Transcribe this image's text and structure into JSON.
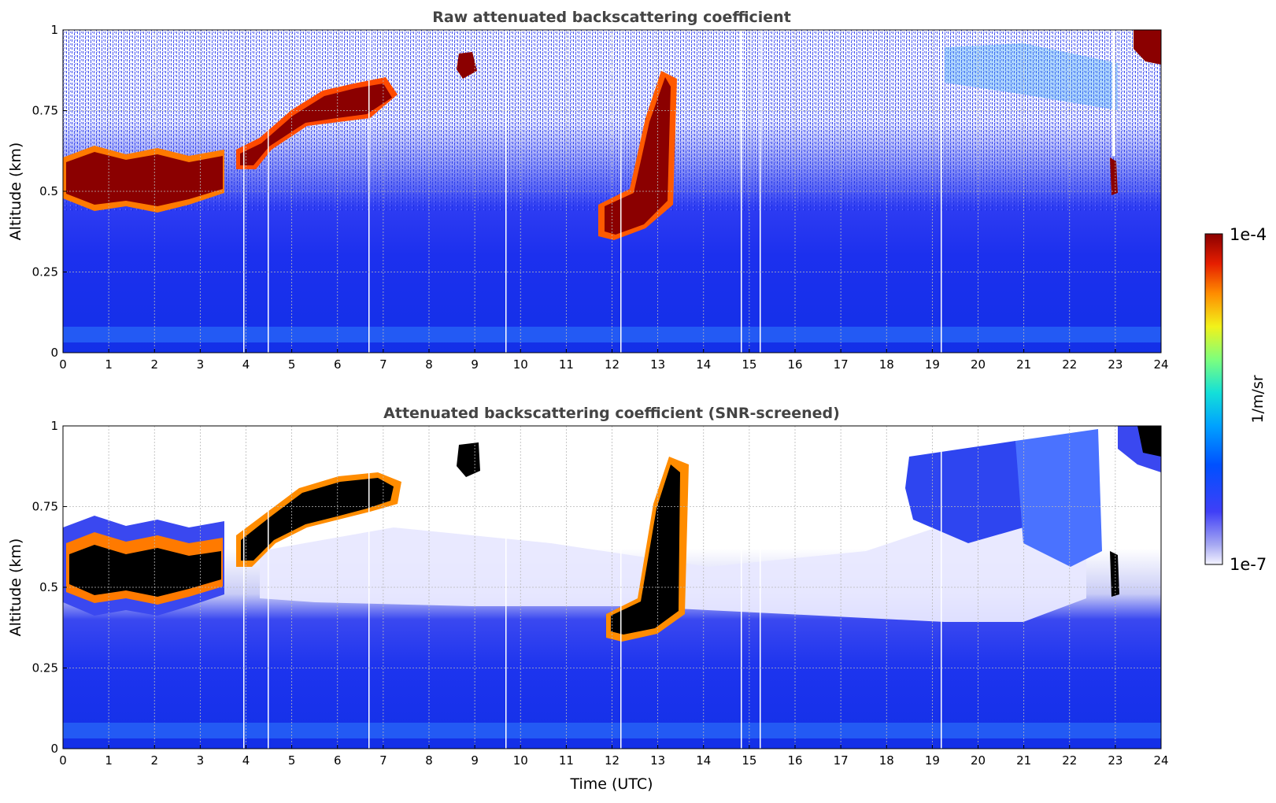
{
  "chart_data": [
    {
      "type": "heatmap",
      "title": "Raw attenuated backscattering coefficient",
      "xlabel": "",
      "ylabel": "Altitude (km)",
      "xlim": [
        0,
        24
      ],
      "ylim": [
        0,
        1
      ],
      "x_ticks": [
        "0",
        "1",
        "2",
        "3",
        "4",
        "5",
        "6",
        "7",
        "8",
        "9",
        "10",
        "11",
        "12",
        "13",
        "14",
        "15",
        "16",
        "17",
        "18",
        "19",
        "20",
        "21",
        "22",
        "23",
        "24"
      ],
      "y_ticks": [
        "0",
        "0.25",
        "0.5",
        "0.75",
        "1"
      ],
      "grid": true,
      "color_scale": "log",
      "features": [
        {
          "kind": "cloud layer",
          "time_utc": [
            0,
            3.6
          ],
          "altitude_km": [
            0.45,
            0.62
          ]
        },
        {
          "kind": "cloud layer",
          "time_utc": [
            3.8,
            7.3
          ],
          "altitude_km": [
            0.55,
            0.85
          ]
        },
        {
          "kind": "cloud patch",
          "time_utc": [
            8.7,
            9.1
          ],
          "altitude_km": [
            0.85,
            0.93
          ]
        },
        {
          "kind": "cloud patch",
          "time_utc": [
            11.7,
            13.8
          ],
          "altitude_km": [
            0.35,
            0.9
          ]
        },
        {
          "kind": "cloud patch",
          "time_utc": [
            23.0,
            24.0
          ],
          "altitude_km": [
            0.88,
            1.0
          ]
        }
      ]
    },
    {
      "type": "heatmap",
      "title": "Attenuated backscattering coefficient (SNR-screened)",
      "xlabel": "Time (UTC)",
      "ylabel": "Altitude (km)",
      "xlim": [
        0,
        24
      ],
      "ylim": [
        0,
        1
      ],
      "x_ticks": [
        "0",
        "1",
        "2",
        "3",
        "4",
        "5",
        "6",
        "7",
        "8",
        "9",
        "10",
        "11",
        "12",
        "13",
        "14",
        "15",
        "16",
        "17",
        "18",
        "19",
        "20",
        "21",
        "22",
        "23",
        "24"
      ],
      "y_ticks": [
        "0",
        "0.25",
        "0.5",
        "0.75",
        "1"
      ],
      "grid": true,
      "color_scale": "log"
    }
  ],
  "colorbar": {
    "label": "1/m/sr",
    "max_label": "1e-4",
    "min_label": "1e-7",
    "colormap": "jet"
  }
}
